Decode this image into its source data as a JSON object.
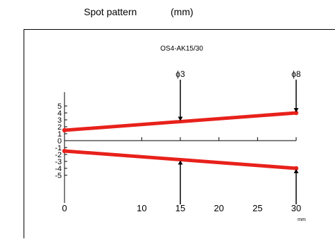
{
  "header": {
    "title": "Spot pattern",
    "unit": "(mm)"
  },
  "chart_data": {
    "type": "line",
    "title": "OS4-AK15/30",
    "xlabel": "mm",
    "ylabel": "",
    "xlim": [
      0,
      30
    ],
    "ylim": [
      -5,
      5
    ],
    "x_ticks": [
      0,
      10,
      15,
      20,
      25,
      30
    ],
    "y_ticks": [
      5,
      4,
      3,
      2,
      1,
      0,
      -1,
      -2,
      -3,
      -4,
      -5
    ],
    "grid": false,
    "series_color": "#e8211b",
    "series": [
      {
        "x": [
          0,
          30
        ],
        "y": [
          1.5,
          4
        ]
      },
      {
        "x": [
          0,
          30
        ],
        "y": [
          -1.5,
          -4
        ]
      }
    ],
    "annotations": [
      {
        "text": "ϕ3",
        "x": 15
      },
      {
        "text": "ϕ8",
        "x": 30
      }
    ]
  }
}
